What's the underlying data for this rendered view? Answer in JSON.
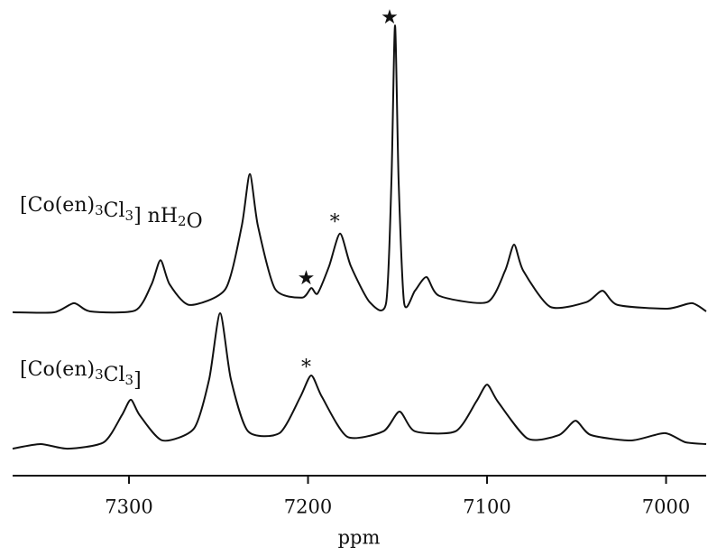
{
  "chart_data": {
    "type": "line",
    "x_label": "ppm",
    "xlim": [
      7365,
      6977.6
    ],
    "xticks": [
      7300,
      7200,
      7100,
      7000
    ],
    "ylim": [
      0,
      100
    ],
    "series": [
      {
        "name": "[Co(en)3Cl3] nH2O",
        "color": "#111111",
        "x": [
          7365.0,
          7341.8,
          7330.7,
          7321.7,
          7296.5,
          7287.4,
          7282.4,
          7277.3,
          7266.2,
          7246.1,
          7237.0,
          7232.5,
          7228.0,
          7218.4,
          7203.3,
          7198.2,
          7194.7,
          7188.2,
          7182.1,
          7176.1,
          7165.5,
          7156.4,
          7153.4,
          7151.4,
          7149.4,
          7146.3,
          7140.3,
          7133.8,
          7126.7,
          7100.0,
          7089.9,
          7084.9,
          7079.8,
          7064.7,
          7044.6,
          7035.5,
          7027.0,
          6999.2,
          6985.6,
          6977.6
        ],
        "values": [
          35.7,
          35.7,
          37.7,
          35.9,
          36.1,
          41.8,
          47.1,
          41.8,
          37.3,
          40.8,
          54.6,
          65.9,
          54.6,
          40.8,
          38.9,
          41.0,
          39.8,
          45.8,
          52.9,
          45.8,
          37.9,
          37.7,
          64.5,
          98.4,
          64.5,
          37.7,
          40.4,
          43.4,
          39.3,
          37.9,
          44.8,
          50.5,
          44.8,
          36.9,
          37.9,
          40.4,
          37.3,
          36.5,
          37.7,
          35.9
        ]
      },
      {
        "name": "[Co(en)3Cl3]",
        "color": "#111111",
        "x": [
          7365.0,
          7349.4,
          7334.3,
          7314.1,
          7304.0,
          7299.0,
          7294.0,
          7281.4,
          7263.7,
          7255.2,
          7249.1,
          7243.1,
          7233.5,
          7215.9,
          7204.3,
          7198.2,
          7192.2,
          7178.1,
          7157.9,
          7148.9,
          7140.3,
          7117.6,
          7106.0,
          7100.0,
          7094.0,
          7077.3,
          7059.7,
          7050.6,
          7042.1,
          7019.4,
          7000.8,
          6989.2,
          6977.6
        ],
        "values": [
          5.9,
          6.9,
          5.9,
          7.3,
          13.2,
          16.6,
          13.2,
          7.7,
          10.3,
          21.1,
          35.5,
          21.1,
          9.7,
          9.3,
          17.2,
          21.9,
          17.2,
          8.5,
          9.7,
          14.0,
          9.7,
          9.7,
          16.2,
          19.9,
          16.2,
          8.1,
          8.9,
          12.0,
          8.9,
          7.7,
          9.3,
          7.3,
          6.9
        ]
      }
    ],
    "annotations": [
      {
        "text": "★",
        "x": 7154.4,
        "y": 100
      },
      {
        "text": "★",
        "x": 7201.0,
        "y": 43.0
      },
      {
        "text": "*",
        "x": 7185.0,
        "y": 56.0
      },
      {
        "text": "*",
        "x": 7201.0,
        "y": 24.3
      }
    ]
  }
}
